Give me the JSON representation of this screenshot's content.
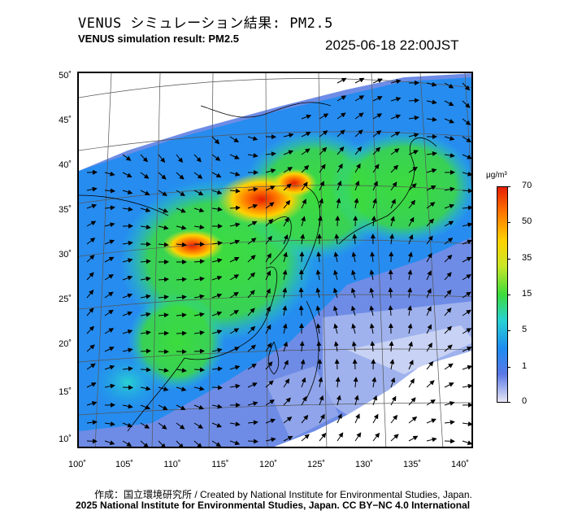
{
  "header": {
    "title_jp": "VENUS シミュレーション結果: PM2.5",
    "title_en": "VENUS simulation result: PM2.5",
    "timestamp": "2025-06-18 22:00JST"
  },
  "map": {
    "lat_ticks": [
      "50˚",
      "45˚",
      "40˚",
      "35˚",
      "30˚",
      "25˚",
      "20˚",
      "15˚",
      "10˚"
    ],
    "lon_ticks": [
      "100˚",
      "105˚",
      "110˚",
      "115˚",
      "120˚",
      "125˚",
      "130˚",
      "135˚",
      "140˚"
    ],
    "features": [
      "pm25-concentration-field",
      "wind-vector-arrows",
      "coastlines",
      "graticule"
    ]
  },
  "colorbar": {
    "unit": "μg/m³",
    "labels": [
      "70",
      "50",
      "35",
      "15",
      "5",
      "1",
      "0"
    ],
    "colors": [
      "#e6e6f5",
      "#5a78e6",
      "#1e8cf0",
      "#28d2d2",
      "#3cdc3c",
      "#c8e628",
      "#ffd200",
      "#ff7800",
      "#e61e00"
    ]
  },
  "credits": {
    "line1": "作成：国立環境研究所 / Created by National Institute for Environmental Studies, Japan.",
    "line2": "2025 National Institute for Environmental Studies, Japan. CC BY−NC 4.0 International"
  }
}
